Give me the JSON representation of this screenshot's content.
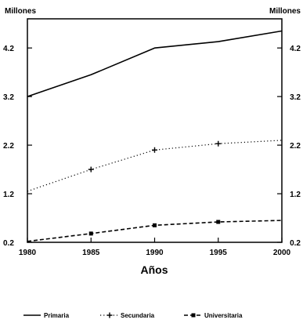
{
  "chart_data": {
    "type": "line",
    "x": [
      1980,
      1985,
      1990,
      1995,
      2000
    ],
    "xlabel": "Años",
    "ylabel_left": "Millones",
    "ylabel_right": "Millones",
    "ylim": [
      0.2,
      4.8
    ],
    "yticks": [
      0.2,
      1.2,
      2.2,
      3.2,
      4.2
    ],
    "ytick_labels": [
      "0.2",
      "1.2",
      "2.2",
      "3.2",
      "4.2"
    ],
    "xtick_labels": [
      "1980",
      "1985",
      "1990",
      "1995",
      "2000"
    ],
    "legend_position": "bottom",
    "grid": false,
    "series": [
      {
        "name": "Primaria",
        "values": [
          3.2,
          3.65,
          4.2,
          4.33,
          4.55
        ],
        "style": "solid",
        "marker": "none"
      },
      {
        "name": "Secundaria",
        "values": [
          1.25,
          1.7,
          2.1,
          2.23,
          2.3
        ],
        "style": "dotted",
        "marker": "plus"
      },
      {
        "name": "Universitaria",
        "values": [
          0.22,
          0.38,
          0.55,
          0.62,
          0.65
        ],
        "style": "dashed",
        "marker": "square"
      }
    ]
  }
}
